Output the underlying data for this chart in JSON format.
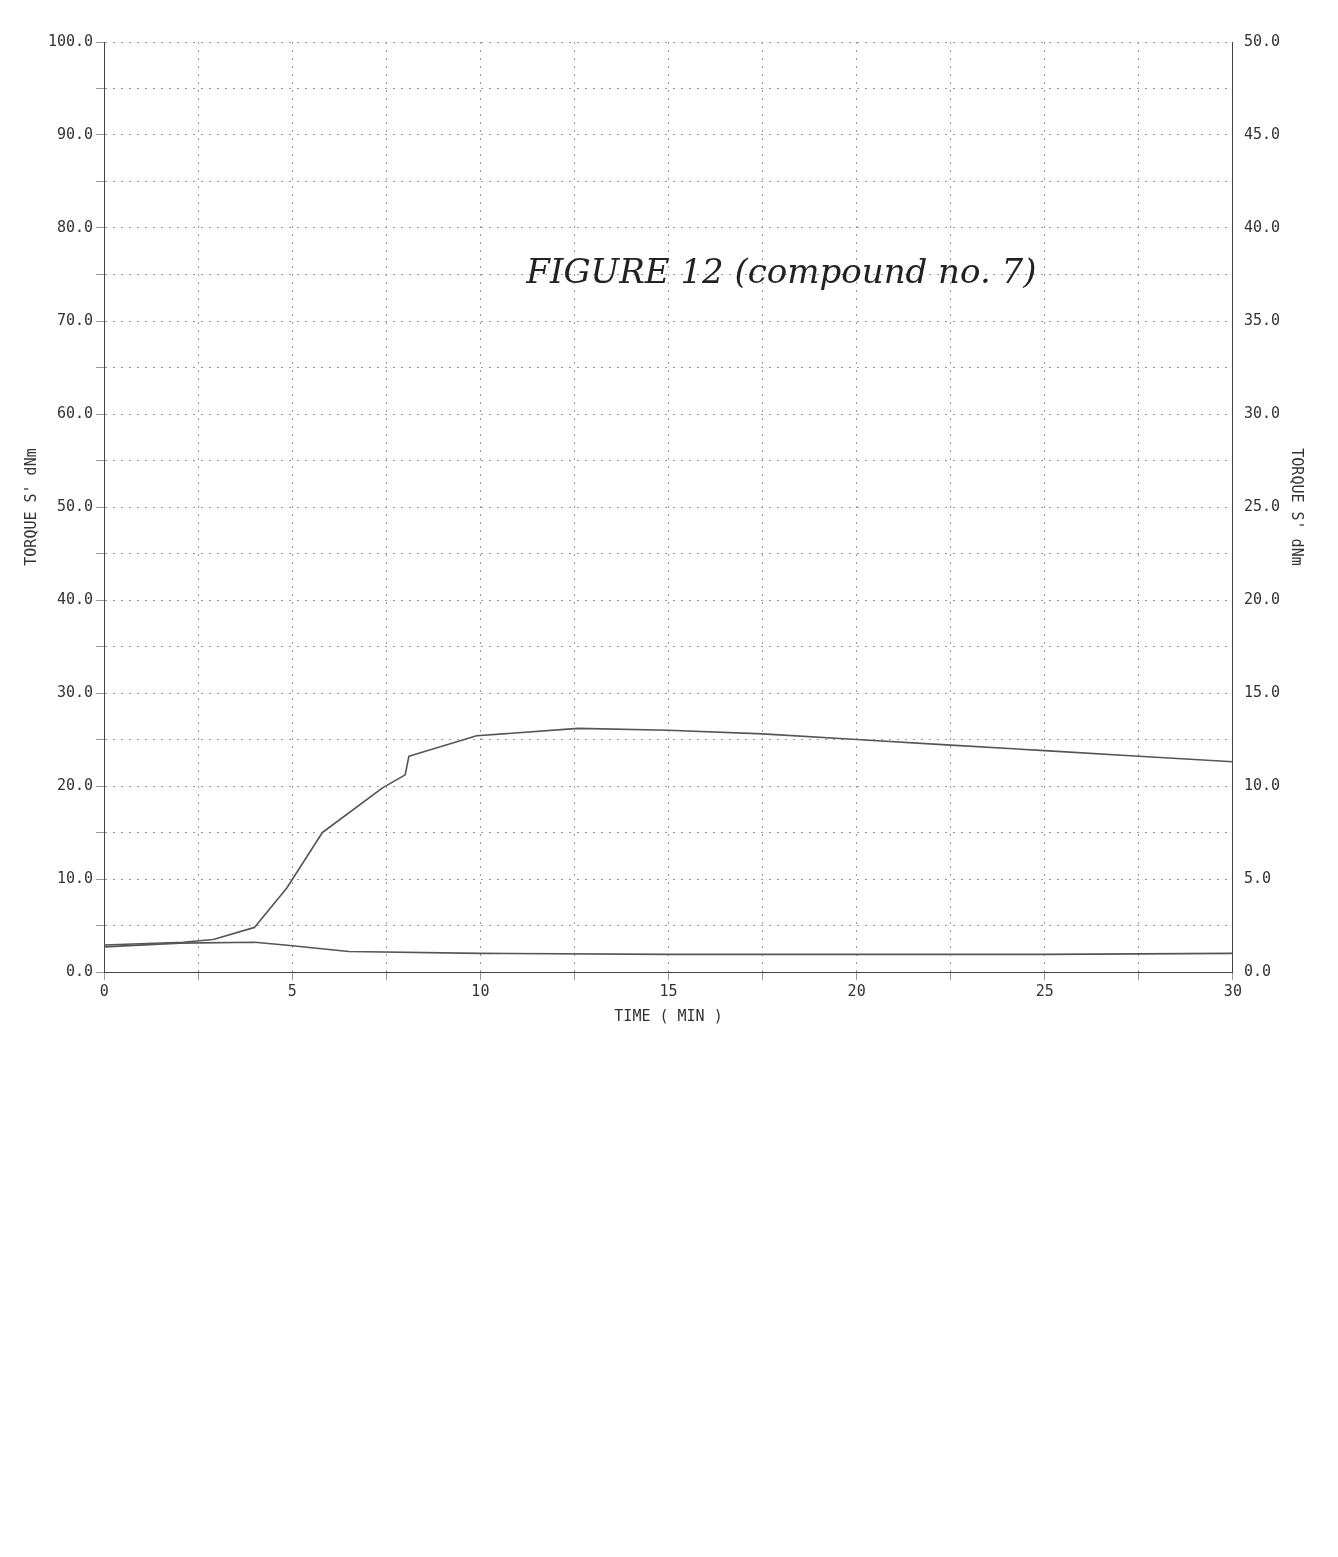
{
  "chart_data": {
    "type": "line",
    "xlabel": "TIME ( MIN )",
    "ylabel": "TORQUE S' dNm",
    "y2label": "TORQUE S' dNm",
    "annotations": [
      "FIGURE 12 (compound no. 7)"
    ],
    "xlim": [
      0,
      30
    ],
    "xticks": [
      0,
      {
        "value": 2.5,
        "label": null
      },
      5,
      {
        "value": 7.5,
        "label": null
      },
      10,
      {
        "value": 12.5,
        "label": null
      },
      15,
      {
        "value": 17.5,
        "label": null
      },
      20,
      {
        "value": 22.5,
        "label": null
      },
      25,
      {
        "value": 27.5,
        "label": null
      },
      30
    ],
    "ylim": [
      0,
      100
    ],
    "yticks": [
      {
        "value": 0,
        "label": "0.0"
      },
      {
        "value": 5,
        "label": null
      },
      {
        "value": 10,
        "label": "10.0"
      },
      {
        "value": 15,
        "label": null
      },
      {
        "value": 20,
        "label": "20.0"
      },
      {
        "value": 25,
        "label": null
      },
      {
        "value": 30,
        "label": "30.0"
      },
      {
        "value": 35,
        "label": null
      },
      {
        "value": 40,
        "label": "40.0"
      },
      {
        "value": 45,
        "label": null
      },
      {
        "value": 50,
        "label": "50.0"
      },
      {
        "value": 55,
        "label": null
      },
      {
        "value": 60,
        "label": "60.0"
      },
      {
        "value": 65,
        "label": null
      },
      {
        "value": 70,
        "label": "70.0"
      },
      {
        "value": 75,
        "label": null
      },
      {
        "value": 80,
        "label": "80.0"
      },
      {
        "value": 85,
        "label": null
      },
      {
        "value": 90,
        "label": "90.0"
      },
      {
        "value": 95,
        "label": null
      },
      {
        "value": 100,
        "label": "100.0"
      }
    ],
    "y2lim": [
      0,
      50
    ],
    "y2ticks": [
      {
        "value": 0,
        "label": "0.0"
      },
      {
        "value": 5,
        "label": "5.0"
      },
      {
        "value": 10,
        "label": "10.0"
      },
      {
        "value": 15,
        "label": "15.0"
      },
      {
        "value": 20,
        "label": "20.0"
      },
      {
        "value": 25,
        "label": "25.0"
      },
      {
        "value": 30,
        "label": "30.0"
      },
      {
        "value": 35,
        "label": "35.0"
      },
      {
        "value": 40,
        "label": "40.0"
      },
      {
        "value": 45,
        "label": "45.0"
      },
      {
        "value": 50,
        "label": "50.0"
      }
    ],
    "grid": true,
    "marker": "none",
    "series": [
      {
        "color": "#555555",
        "axis": "y2",
        "x": [
          0,
          2.1,
          2.9,
          4.0,
          4.85,
          5.8,
          7.4,
          8.0,
          8.1,
          9.9,
          12.6,
          15,
          17.5,
          20,
          22.5,
          25,
          27.5,
          30
        ],
        "values": [
          1.45,
          1.6,
          1.75,
          2.4,
          4.5,
          7.5,
          9.9,
          10.6,
          11.6,
          12.7,
          13.1,
          13.0,
          12.8,
          12.5,
          12.2,
          11.9,
          11.6,
          11.3
        ]
      },
      {
        "color": "#555555",
        "axis": "y2",
        "x": [
          0,
          2,
          4,
          4.8,
          6.5,
          10,
          15,
          20,
          25,
          30
        ],
        "values": [
          1.35,
          1.55,
          1.6,
          1.45,
          1.1,
          1.0,
          0.95,
          0.95,
          0.95,
          1.0
        ]
      }
    ]
  }
}
